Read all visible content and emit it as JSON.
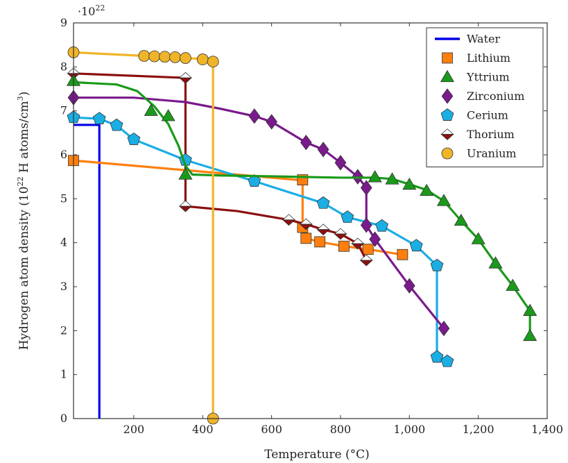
{
  "chart_data": {
    "type": "line",
    "xlabel": "Temperature (°C)",
    "ylabel_main": "Hydrogen atom density (10",
    "ylabel_exp": "22",
    "ylabel_tail": " H atoms/cm",
    "ylabel_cube": "3",
    "ylabel_close": ")",
    "scale_note_base": "·10",
    "scale_note_exp": "22",
    "xlim": [
      25,
      1400
    ],
    "ylim": [
      0,
      9
    ],
    "xticks": [
      200,
      400,
      600,
      800,
      1000,
      1200,
      1400
    ],
    "xtick_labels": [
      "200",
      "400",
      "600",
      "800",
      "1,000",
      "1,200",
      "1,400"
    ],
    "yticks": [
      0,
      1,
      2,
      3,
      4,
      5,
      6,
      7,
      8,
      9
    ],
    "ytick_labels": [
      "0",
      "1",
      "2",
      "3",
      "4",
      "5",
      "6",
      "7",
      "8",
      "9"
    ],
    "legend_position": "top-right",
    "series": [
      {
        "name": "Water",
        "color": "#0000e6",
        "marker": "none",
        "line": [
          [
            25,
            6.68
          ],
          [
            100,
            6.68
          ],
          [
            100,
            0
          ]
        ],
        "points": []
      },
      {
        "name": "Lithium",
        "color": "#ff7f0e",
        "marker": "square",
        "line": [
          [
            25,
            5.87
          ],
          [
            690,
            5.42
          ],
          [
            690,
            4.35
          ],
          [
            700,
            4.1
          ],
          [
            740,
            4.02
          ],
          [
            810,
            3.92
          ],
          [
            880,
            3.85
          ],
          [
            980,
            3.73
          ]
        ],
        "points": [
          [
            25,
            5.87
          ],
          [
            690,
            5.43
          ],
          [
            690,
            4.35
          ],
          [
            700,
            4.1
          ],
          [
            740,
            4.02
          ],
          [
            810,
            3.92
          ],
          [
            880,
            3.85
          ],
          [
            980,
            3.73
          ]
        ]
      },
      {
        "name": "Yttrium",
        "color": "#1a9a1a",
        "marker": "triangle",
        "line": [
          [
            25,
            7.65
          ],
          [
            150,
            7.6
          ],
          [
            210,
            7.45
          ],
          [
            260,
            7.1
          ],
          [
            300,
            6.7
          ],
          [
            330,
            6.2
          ],
          [
            350,
            5.75
          ],
          [
            370,
            5.55
          ],
          [
            450,
            5.53
          ],
          [
            600,
            5.51
          ],
          [
            800,
            5.48
          ],
          [
            900,
            5.48
          ],
          [
            950,
            5.45
          ],
          [
            1000,
            5.33
          ],
          [
            1050,
            5.2
          ],
          [
            1100,
            4.95
          ],
          [
            1150,
            4.5
          ],
          [
            1200,
            4.08
          ],
          [
            1250,
            3.53
          ],
          [
            1300,
            3.02
          ],
          [
            1350,
            2.45
          ],
          [
            1350,
            1.88
          ]
        ],
        "points": [
          [
            25,
            7.68
          ],
          [
            250,
            7.0
          ],
          [
            300,
            6.88
          ],
          [
            350,
            5.55
          ],
          [
            900,
            5.49
          ],
          [
            950,
            5.44
          ],
          [
            1000,
            5.32
          ],
          [
            1050,
            5.18
          ],
          [
            1100,
            4.95
          ],
          [
            1150,
            4.5
          ],
          [
            1200,
            4.08
          ],
          [
            1250,
            3.53
          ],
          [
            1300,
            3.02
          ],
          [
            1350,
            2.45
          ],
          [
            1350,
            1.88
          ]
        ]
      },
      {
        "name": "Zirconium",
        "color": "#7a1a8c",
        "marker": "diamond",
        "line": [
          [
            25,
            7.3
          ],
          [
            200,
            7.3
          ],
          [
            350,
            7.2
          ],
          [
            450,
            7.05
          ],
          [
            550,
            6.88
          ],
          [
            600,
            6.75
          ],
          [
            700,
            6.28
          ],
          [
            750,
            6.12
          ],
          [
            800,
            5.82
          ],
          [
            850,
            5.5
          ],
          [
            875,
            5.25
          ],
          [
            875,
            4.4
          ],
          [
            900,
            4.08
          ],
          [
            1000,
            3.02
          ],
          [
            1100,
            2.05
          ]
        ],
        "points": [
          [
            25,
            7.3
          ],
          [
            550,
            6.88
          ],
          [
            600,
            6.75
          ],
          [
            700,
            6.28
          ],
          [
            750,
            6.12
          ],
          [
            800,
            5.82
          ],
          [
            850,
            5.5
          ],
          [
            875,
            5.25
          ],
          [
            875,
            4.4
          ],
          [
            900,
            4.08
          ],
          [
            1000,
            3.02
          ],
          [
            1100,
            2.05
          ]
        ]
      },
      {
        "name": "Cerium",
        "color": "#1aaee5",
        "marker": "pentagon",
        "line": [
          [
            25,
            6.85
          ],
          [
            100,
            6.82
          ],
          [
            150,
            6.67
          ],
          [
            200,
            6.35
          ],
          [
            350,
            5.88
          ],
          [
            550,
            5.4
          ],
          [
            750,
            4.9
          ],
          [
            820,
            4.58
          ],
          [
            920,
            4.38
          ],
          [
            1020,
            3.93
          ],
          [
            1080,
            3.48
          ],
          [
            1080,
            1.4
          ],
          [
            1110,
            1.3
          ]
        ],
        "points": [
          [
            25,
            6.85
          ],
          [
            100,
            6.82
          ],
          [
            150,
            6.67
          ],
          [
            200,
            6.35
          ],
          [
            350,
            5.88
          ],
          [
            550,
            5.4
          ],
          [
            750,
            4.9
          ],
          [
            820,
            4.58
          ],
          [
            920,
            4.38
          ],
          [
            1020,
            3.93
          ],
          [
            1080,
            3.48
          ],
          [
            1080,
            1.4
          ],
          [
            1110,
            1.3
          ]
        ]
      },
      {
        "name": "Thorium",
        "color": "#8b0f0f",
        "marker": "halfdiamond",
        "line": [
          [
            25,
            7.85
          ],
          [
            350,
            7.75
          ],
          [
            350,
            4.83
          ],
          [
            500,
            4.72
          ],
          [
            650,
            4.52
          ],
          [
            700,
            4.42
          ],
          [
            750,
            4.3
          ],
          [
            800,
            4.2
          ],
          [
            850,
            3.98
          ],
          [
            875,
            3.6
          ]
        ],
        "points": [
          [
            25,
            7.85
          ],
          [
            350,
            7.75
          ],
          [
            350,
            4.83
          ],
          [
            650,
            4.52
          ],
          [
            700,
            4.42
          ],
          [
            750,
            4.3
          ],
          [
            800,
            4.2
          ],
          [
            850,
            3.98
          ],
          [
            875,
            3.6
          ]
        ]
      },
      {
        "name": "Uranium",
        "color": "#f0b429",
        "marker": "circle",
        "line": [
          [
            25,
            8.33
          ],
          [
            230,
            8.25
          ],
          [
            260,
            8.24
          ],
          [
            290,
            8.23
          ],
          [
            320,
            8.22
          ],
          [
            350,
            8.2
          ],
          [
            400,
            8.18
          ],
          [
            430,
            8.12
          ],
          [
            430,
            0
          ]
        ],
        "points": [
          [
            25,
            8.33
          ],
          [
            230,
            8.25
          ],
          [
            260,
            8.24
          ],
          [
            290,
            8.23
          ],
          [
            320,
            8.22
          ],
          [
            350,
            8.2
          ],
          [
            400,
            8.17
          ],
          [
            430,
            8.12
          ],
          [
            430,
            0
          ]
        ]
      }
    ]
  }
}
